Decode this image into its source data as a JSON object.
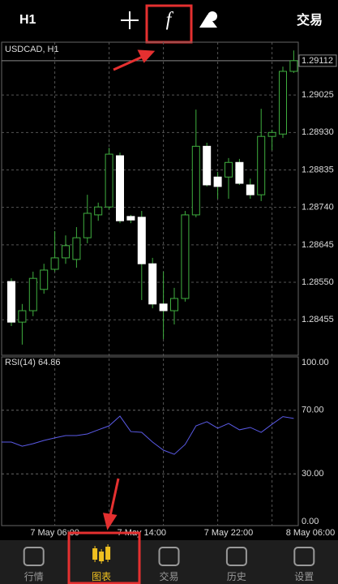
{
  "toolbar": {
    "timeframe": "H1",
    "trade": "交易"
  },
  "chart_data": [
    {
      "type": "candlestick",
      "title": "USDCAD, H1",
      "open": [
        1.28552,
        1.28449,
        1.28478,
        1.28532,
        1.28583,
        1.28612,
        1.28608,
        1.28663,
        1.28721,
        1.28741,
        1.28871,
        1.28717,
        1.28715,
        1.28597,
        1.28495,
        1.28478,
        1.28509,
        1.28721,
        1.28895,
        1.28817,
        1.28817,
        1.28854,
        1.28797,
        1.28772,
        1.2892,
        1.28926,
        1.29085
      ],
      "high": [
        1.2856,
        1.28495,
        1.28577,
        1.28597,
        1.2868,
        1.28669,
        1.2869,
        1.28772,
        1.28752,
        1.28891,
        1.28879,
        1.28721,
        1.28731,
        1.28612,
        1.28577,
        1.28536,
        1.28731,
        1.28988,
        1.28904,
        1.2883,
        1.28865,
        1.28863,
        1.28813,
        1.2899,
        1.28937,
        1.29097,
        1.29138
      ],
      "low": [
        1.28439,
        1.28392,
        1.28464,
        1.28521,
        1.28577,
        1.28597,
        1.28587,
        1.28649,
        1.28706,
        1.28735,
        1.287,
        1.287,
        1.28505,
        1.28484,
        1.28406,
        1.28443,
        1.28501,
        1.28715,
        1.28793,
        1.28762,
        1.28762,
        1.28797,
        1.28762,
        1.28756,
        1.28885,
        1.28916,
        1.29081
      ],
      "close": [
        1.28449,
        1.28478,
        1.2856,
        1.28581,
        1.28612,
        1.28643,
        1.28663,
        1.28725,
        1.28741,
        1.28875,
        1.28706,
        1.28708,
        1.28597,
        1.28495,
        1.28478,
        1.28509,
        1.28721,
        1.28895,
        1.28797,
        1.28793,
        1.28854,
        1.28801,
        1.28772,
        1.2892,
        1.2893,
        1.29085,
        1.29112
      ],
      "up_color": "#3fae3f",
      "down_color": "#ffffff",
      "current_price": 1.29112,
      "ylim": [
        1.28367,
        1.29159
      ],
      "yticks": [
        1.28455,
        {
          "value": 1.2855,
          "label": "1.28550"
        },
        1.28645,
        {
          "value": 1.2874,
          "label": "1.28740"
        },
        1.28835,
        {
          "value": 1.2893,
          "label": "1.28930"
        },
        1.29025
      ],
      "time_labels": [
        "7 May 06:00",
        "7 May 14:00",
        "7 May 22:00",
        "8 May 06:00"
      ],
      "grid": true
    },
    {
      "type": "line",
      "title": "RSI(14) 64.86",
      "color": "#5a5ae6",
      "values": [
        50.0,
        47.4,
        49.0,
        51.0,
        52.6,
        54.1,
        54.1,
        55.1,
        57.7,
        60.2,
        66.3,
        56.6,
        56.1,
        50.0,
        44.9,
        42.3,
        48.5,
        60.2,
        62.8,
        58.7,
        61.7,
        57.7,
        59.2,
        56.1,
        61.2,
        66.0,
        64.86
      ],
      "ylim": [
        0,
        100
      ],
      "yticks": [
        {
          "value": 100,
          "label": "100.00"
        },
        {
          "value": 70,
          "label": "70.00"
        },
        {
          "value": 30,
          "label": "30.00"
        },
        {
          "value": 0,
          "label": "0.00"
        }
      ]
    }
  ],
  "nav": {
    "items": [
      "行情",
      "图表",
      "交易",
      "历史",
      "设置"
    ]
  }
}
